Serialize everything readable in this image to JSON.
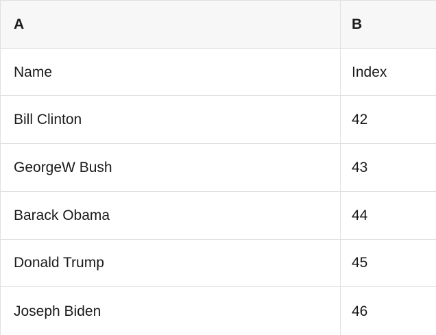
{
  "colors": {
    "header_bg": "#f7f7f7",
    "border": "#e0e0e0",
    "text": "#1a1a1a",
    "row_bg": "#ffffff"
  },
  "table": {
    "column_headers": [
      "A",
      "B"
    ],
    "field_labels": {
      "name": "Name",
      "index": "Index"
    },
    "rows": [
      [
        "Name",
        "Index"
      ],
      [
        "Bill Clinton",
        "42"
      ],
      [
        "GeorgeW Bush",
        "43"
      ],
      [
        "Barack Obama",
        "44"
      ],
      [
        "Donald Trump",
        "45"
      ],
      [
        "Joseph Biden",
        "46"
      ]
    ]
  }
}
